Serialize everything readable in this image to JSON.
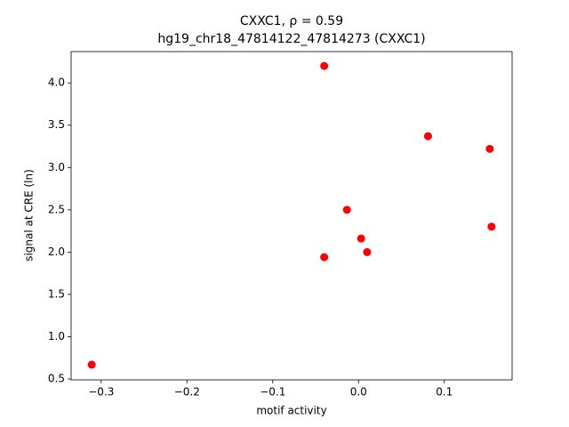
{
  "chart_data": {
    "type": "scatter",
    "title": "CXXC1, ρ = 0.59",
    "subtitle": "hg19_chr18_47814122_47814273 (CXXC1)",
    "x_label": "motif activity",
    "y_label": "signal at CRE (ln)",
    "color": "#ff0000",
    "x": [
      -0.311,
      -0.04,
      -0.04,
      -0.0135,
      0.003,
      0.01,
      0.081,
      0.153,
      0.155
    ],
    "values": [
      0.67,
      4.2,
      1.94,
      2.5,
      2.16,
      2.0,
      3.37,
      3.22,
      2.3
    ],
    "xlim": [
      -0.335,
      0.179
    ],
    "ylim": [
      0.49,
      4.37
    ],
    "xticks": [
      {
        "value": -0.3,
        "label": "−0.3"
      },
      {
        "value": -0.2,
        "label": "−0.2"
      },
      {
        "value": -0.1,
        "label": "−0.1"
      },
      {
        "value": 0,
        "label": "0.0"
      },
      {
        "value": 0.1,
        "label": "0.1"
      }
    ],
    "yticks": [
      {
        "value": 0.5,
        "label": "0.5"
      },
      {
        "value": 1,
        "label": "1.0"
      },
      {
        "value": 1.5,
        "label": "1.5"
      },
      {
        "value": 2,
        "label": "2.0"
      },
      {
        "value": 2.5,
        "label": "2.5"
      },
      {
        "value": 3,
        "label": "3.0"
      },
      {
        "value": 3.5,
        "label": "3.5"
      },
      {
        "value": 4,
        "label": "4.0"
      }
    ]
  }
}
